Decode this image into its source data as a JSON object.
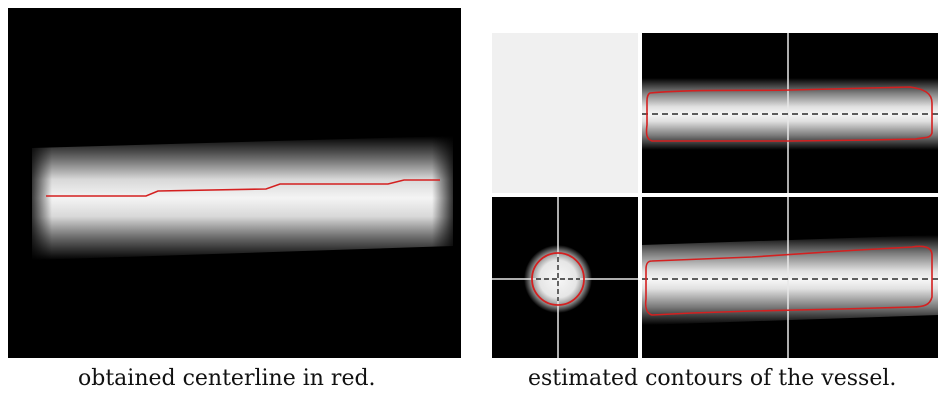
{
  "figure": {
    "left_caption": "obtained centerline in red.",
    "right_caption": "estimated contours of the vessel."
  },
  "colors": {
    "background": "#000000",
    "vessel": "#f2f2f2",
    "centerline": "#d42020",
    "contour": "#d42020",
    "empty_quadrant": "#f0f0f0",
    "separator": "#ffffff"
  }
}
